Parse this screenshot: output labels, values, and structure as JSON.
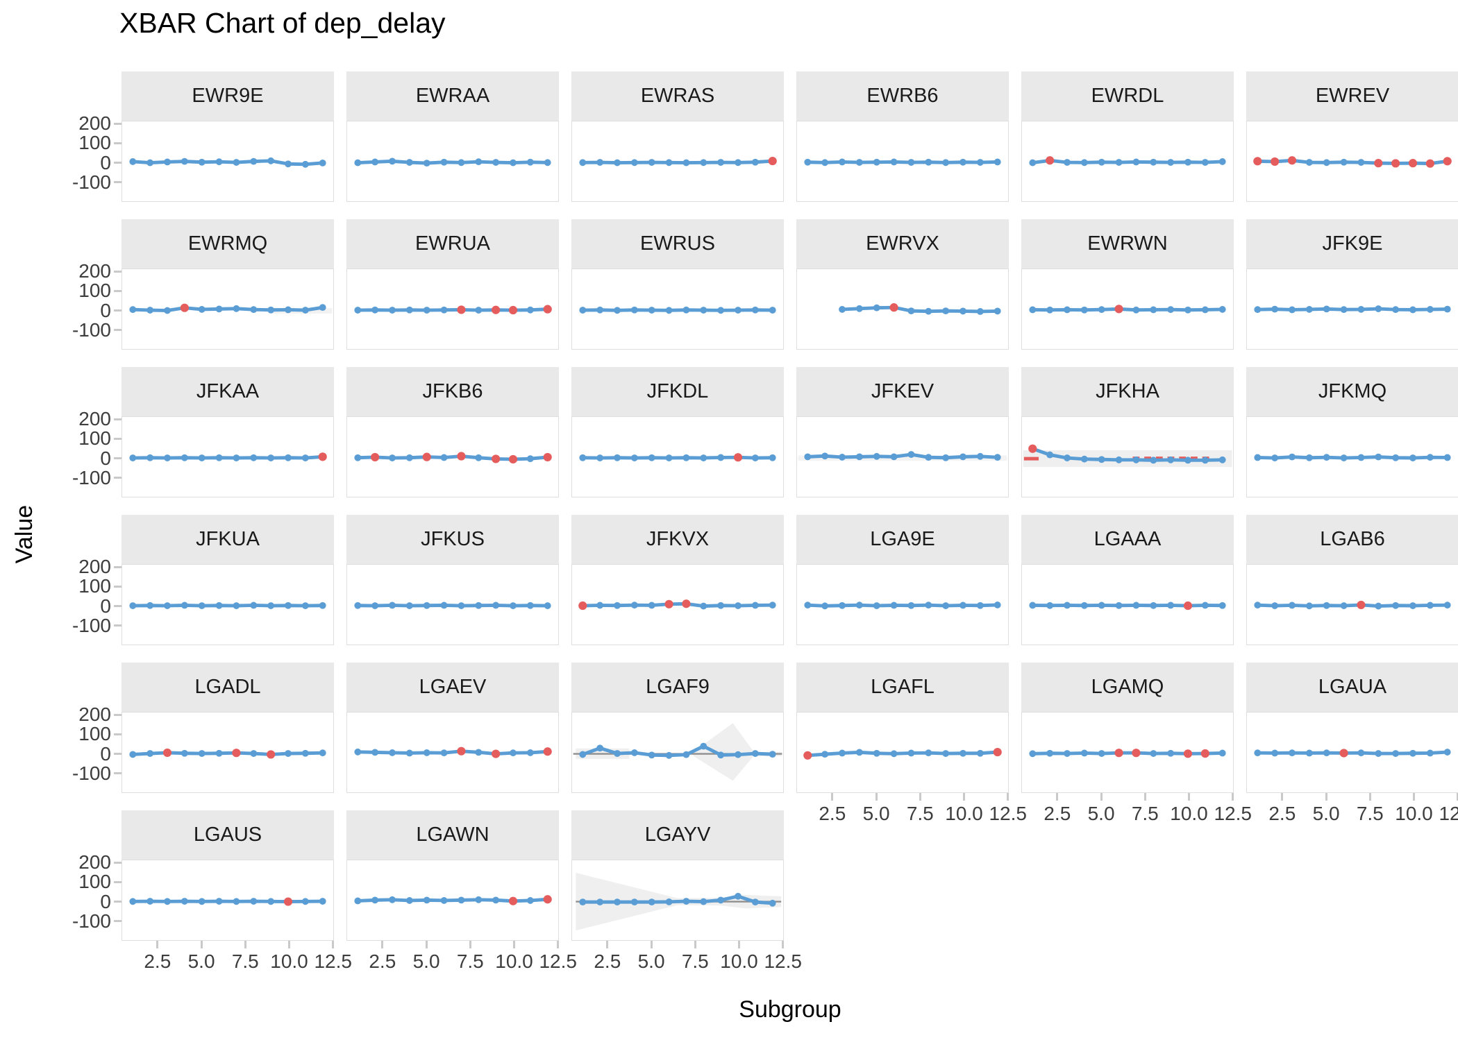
{
  "chart_data": {
    "type": "line",
    "title": "XBAR Chart of dep_delay",
    "xlabel": "Subgroup",
    "ylabel": "Value",
    "xlim": [
      0.45,
      12.55
    ],
    "ylim": [
      -200,
      215
    ],
    "grid": false,
    "legend": "none",
    "facets": [
      {
        "label": "EWR9E",
        "y": [
          6,
          0,
          4,
          7,
          3,
          5,
          2,
          7,
          10,
          -6,
          -8,
          -1
        ],
        "red": []
      },
      {
        "label": "EWRAA",
        "y": [
          0,
          4,
          8,
          2,
          -2,
          3,
          1,
          5,
          2,
          0,
          3,
          1
        ],
        "red": []
      },
      {
        "label": "EWRAS",
        "y": [
          1,
          2,
          0,
          1,
          2,
          1,
          0,
          1,
          2,
          1,
          3,
          9
        ],
        "red": [
          12
        ]
      },
      {
        "label": "EWRB6",
        "y": [
          3,
          1,
          4,
          2,
          3,
          4,
          2,
          3,
          1,
          3,
          2,
          4
        ],
        "red": []
      },
      {
        "label": "EWRDL",
        "y": [
          0,
          12,
          2,
          1,
          3,
          2,
          4,
          3,
          2,
          3,
          2,
          6
        ],
        "red": [
          2
        ]
      },
      {
        "label": "EWREV",
        "y": [
          8,
          6,
          12,
          2,
          1,
          3,
          2,
          -2,
          -3,
          -2,
          -4,
          8
        ],
        "red": [
          1,
          2,
          3,
          8,
          9,
          10,
          11,
          12
        ]
      },
      {
        "label": "EWRMQ",
        "y": [
          5,
          2,
          0,
          14,
          6,
          8,
          10,
          5,
          3,
          4,
          2,
          16
        ],
        "red": [
          4
        ],
        "bands": [
          {
            "type": "rect",
            "x1": 9.0,
            "x2": 12.55,
            "y1": -16,
            "y2": 13,
            "fill": "#F2F2F2"
          }
        ]
      },
      {
        "label": "EWRUA",
        "y": [
          2,
          3,
          2,
          3,
          2,
          3,
          4,
          2,
          3,
          2,
          3,
          7
        ],
        "red": [
          7,
          9,
          10,
          12
        ]
      },
      {
        "label": "EWRUS",
        "y": [
          2,
          3,
          1,
          3,
          2,
          1,
          3,
          2,
          1,
          2,
          3,
          2
        ],
        "red": []
      },
      {
        "label": "EWRVX",
        "x": [
          3,
          4,
          5,
          6,
          7,
          8,
          9,
          10,
          11,
          12
        ],
        "y": [
          6,
          10,
          14,
          16,
          -2,
          -4,
          -2,
          -3,
          -5,
          -3
        ],
        "red": [
          6
        ]
      },
      {
        "label": "EWRWN",
        "y": [
          4,
          3,
          4,
          3,
          5,
          8,
          3,
          4,
          5,
          3,
          4,
          6
        ],
        "red": [
          6
        ]
      },
      {
        "label": "JFK9E",
        "y": [
          5,
          7,
          4,
          6,
          8,
          5,
          6,
          9,
          5,
          4,
          6,
          7
        ],
        "red": []
      },
      {
        "label": "JFKAA",
        "y": [
          2,
          3,
          2,
          3,
          2,
          3,
          2,
          3,
          2,
          3,
          2,
          8
        ],
        "red": [
          12
        ]
      },
      {
        "label": "JFKB6",
        "y": [
          3,
          6,
          2,
          3,
          7,
          4,
          11,
          3,
          -3,
          -5,
          -2,
          6
        ],
        "red": [
          2,
          5,
          7,
          9,
          10,
          12
        ]
      },
      {
        "label": "JFKDL",
        "y": [
          3,
          2,
          3,
          2,
          3,
          2,
          3,
          2,
          4,
          5,
          2,
          3
        ],
        "red": [
          10
        ]
      },
      {
        "label": "JFKEV",
        "y": [
          8,
          12,
          6,
          8,
          10,
          8,
          20,
          5,
          3,
          8,
          10,
          5
        ],
        "red": [],
        "bands": [
          {
            "type": "rect",
            "x1": 0.45,
            "x2": 12.55,
            "y1": -13,
            "y2": 15,
            "fill": "#F3F3F3"
          }
        ]
      },
      {
        "label": "JFKHA",
        "y": [
          50,
          18,
          2,
          -4,
          -6,
          -8,
          -8,
          -10,
          -8,
          -10,
          -10,
          -8
        ],
        "red": [
          1
        ],
        "bands": [
          {
            "type": "rect",
            "x1": 0.45,
            "x2": 12.55,
            "y1": -45,
            "y2": 42,
            "fill": "#EFEFEF"
          }
        ],
        "red_segments": [
          {
            "x1": 0.5,
            "x2": 1.35,
            "y": -2,
            "dash": ""
          },
          {
            "x1": 6.8,
            "x2": 11.5,
            "y": 0,
            "dash": "10,7"
          }
        ]
      },
      {
        "label": "JFKMQ",
        "y": [
          4,
          2,
          7,
          3,
          5,
          2,
          4,
          7,
          3,
          2,
          5,
          4
        ],
        "red": []
      },
      {
        "label": "JFKUA",
        "y": [
          2,
          3,
          2,
          4,
          2,
          3,
          2,
          4,
          2,
          3,
          2,
          3
        ],
        "red": []
      },
      {
        "label": "JFKUS",
        "y": [
          3,
          2,
          4,
          2,
          3,
          4,
          2,
          3,
          4,
          2,
          3,
          2
        ],
        "red": []
      },
      {
        "label": "JFKVX",
        "y": [
          2,
          4,
          3,
          5,
          4,
          10,
          12,
          0,
          3,
          2,
          4,
          5
        ],
        "red": [
          1,
          6,
          7
        ]
      },
      {
        "label": "LGA9E",
        "y": [
          5,
          1,
          3,
          5,
          2,
          4,
          3,
          5,
          2,
          4,
          3,
          6
        ],
        "red": []
      },
      {
        "label": "LGAAA",
        "y": [
          4,
          3,
          4,
          3,
          4,
          3,
          4,
          3,
          4,
          2,
          4,
          3
        ],
        "red": [
          10
        ]
      },
      {
        "label": "LGAB6",
        "y": [
          5,
          2,
          4,
          1,
          3,
          2,
          6,
          0,
          3,
          2,
          4,
          5
        ],
        "red": [
          7
        ]
      },
      {
        "label": "LGADL",
        "y": [
          -3,
          2,
          6,
          3,
          2,
          3,
          5,
          2,
          -3,
          2,
          3,
          5
        ],
        "red": [
          3,
          7,
          9
        ]
      },
      {
        "label": "LGAEV",
        "y": [
          10,
          8,
          6,
          4,
          6,
          5,
          14,
          8,
          0,
          5,
          6,
          12
        ],
        "red": [
          7,
          9,
          12
        ]
      },
      {
        "label": "LGAF9",
        "y": [
          -3,
          30,
          2,
          6,
          -6,
          -8,
          -4,
          40,
          -6,
          -4,
          2,
          -2
        ],
        "red": [],
        "bands": [
          {
            "type": "rect",
            "x1": 0.6,
            "x2": 3.7,
            "y1": -26,
            "y2": 28,
            "fill": "#EFEFEF"
          },
          {
            "type": "poly",
            "pts": [
              [
                7.4,
                10
              ],
              [
                9.7,
                160
              ],
              [
                11.0,
                0
              ],
              [
                9.7,
                -140
              ],
              [
                7.4,
                -10
              ]
            ],
            "fill": "#EFEFEF"
          },
          {
            "type": "rect",
            "x1": 11.0,
            "x2": 12.55,
            "y1": -12,
            "y2": 10,
            "fill": "#EFEFEF"
          }
        ],
        "center_line": {
          "x1": 0.45,
          "x2": 12.55,
          "y": 0
        }
      },
      {
        "label": "LGAFL",
        "y": [
          -8,
          -2,
          4,
          8,
          3,
          1,
          4,
          5,
          2,
          3,
          3,
          9
        ],
        "red": [
          1,
          12
        ]
      },
      {
        "label": "LGAMQ",
        "y": [
          1,
          3,
          2,
          4,
          2,
          5,
          5,
          2,
          3,
          1,
          2,
          4
        ],
        "red": [
          6,
          7,
          10,
          11
        ]
      },
      {
        "label": "LGAUA",
        "y": [
          5,
          4,
          5,
          4,
          5,
          4,
          5,
          2,
          2,
          3,
          4,
          9
        ],
        "red": [
          6
        ]
      },
      {
        "label": "LGAUS",
        "y": [
          1,
          2,
          1,
          2,
          1,
          2,
          1,
          2,
          1,
          0,
          1,
          2
        ],
        "red": [
          10
        ]
      },
      {
        "label": "LGAWN",
        "y": [
          4,
          8,
          10,
          6,
          8,
          6,
          8,
          10,
          8,
          3,
          6,
          12
        ],
        "red": [
          10,
          12
        ]
      },
      {
        "label": "LGAYV",
        "y": [
          -2,
          -2,
          -2,
          -2,
          -2,
          -1,
          2,
          0,
          8,
          28,
          -2,
          -8
        ],
        "red": [],
        "bands": [
          {
            "type": "poly",
            "pts": [
              [
                0.6,
                150
              ],
              [
                6.5,
                18
              ],
              [
                9.0,
                20
              ],
              [
                10.4,
                35
              ],
              [
                12.5,
                28
              ],
              [
                12.5,
                -28
              ],
              [
                10.4,
                -35
              ],
              [
                9.0,
                -20
              ],
              [
                6.5,
                -18
              ],
              [
                0.6,
                -150
              ]
            ],
            "fill": "#EFEFEF"
          }
        ],
        "center_line": {
          "x1": 0.6,
          "x2": 12.5,
          "y": 0
        }
      }
    ]
  },
  "axis": {
    "y_tick_labels": [
      "200",
      "100",
      "0",
      "-100"
    ],
    "y_tick_values": [
      200,
      100,
      0,
      -100
    ],
    "x_tick_labels": [
      "2.5",
      "5.0",
      "7.5",
      "10.0",
      "12.5"
    ],
    "x_tick_values": [
      2.5,
      5.0,
      7.5,
      10.0,
      12.5
    ]
  },
  "colors": {
    "point": "#5A9DD5",
    "violation": "#E55C5C",
    "strip_bg": "#E9E9E9",
    "panel_border": "#DEDEDE",
    "band": "#EFEFEF",
    "center_line": "#8F8F8F",
    "axis_text": "#3D3D3D",
    "tick": "#C9C9C9"
  }
}
